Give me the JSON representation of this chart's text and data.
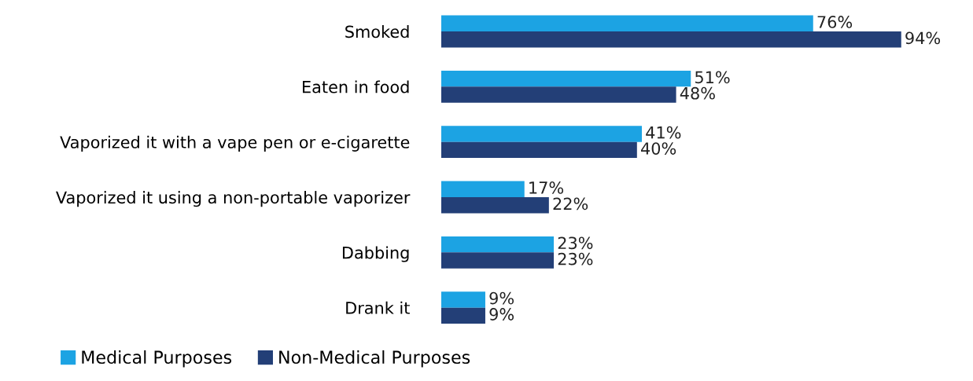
{
  "chart_data": {
    "type": "bar",
    "orientation": "horizontal",
    "tick_labels": "y",
    "legend": "bottom",
    "grid": false,
    "categories": [
      "Smoked",
      "Eaten in food",
      "Vaporized it with a vape pen or e-cigarette",
      "Vaporized it using a non-portable vaporizer",
      "Dabbing",
      "Drank it"
    ],
    "series": [
      {
        "name": "Medical Purposes",
        "color": "#1ca3e3",
        "values": [
          76,
          51,
          41,
          17,
          23,
          9
        ],
        "value_labels": [
          "76%",
          "51%",
          "41%",
          "17%",
          "23%",
          "9%"
        ]
      },
      {
        "name": "Non-Medical Purposes",
        "color": "#233f77",
        "values": [
          94,
          48,
          40,
          22,
          23,
          9
        ],
        "value_labels": [
          "94%",
          "48%",
          "40%",
          "22%",
          "23%",
          "9%"
        ]
      }
    ]
  }
}
